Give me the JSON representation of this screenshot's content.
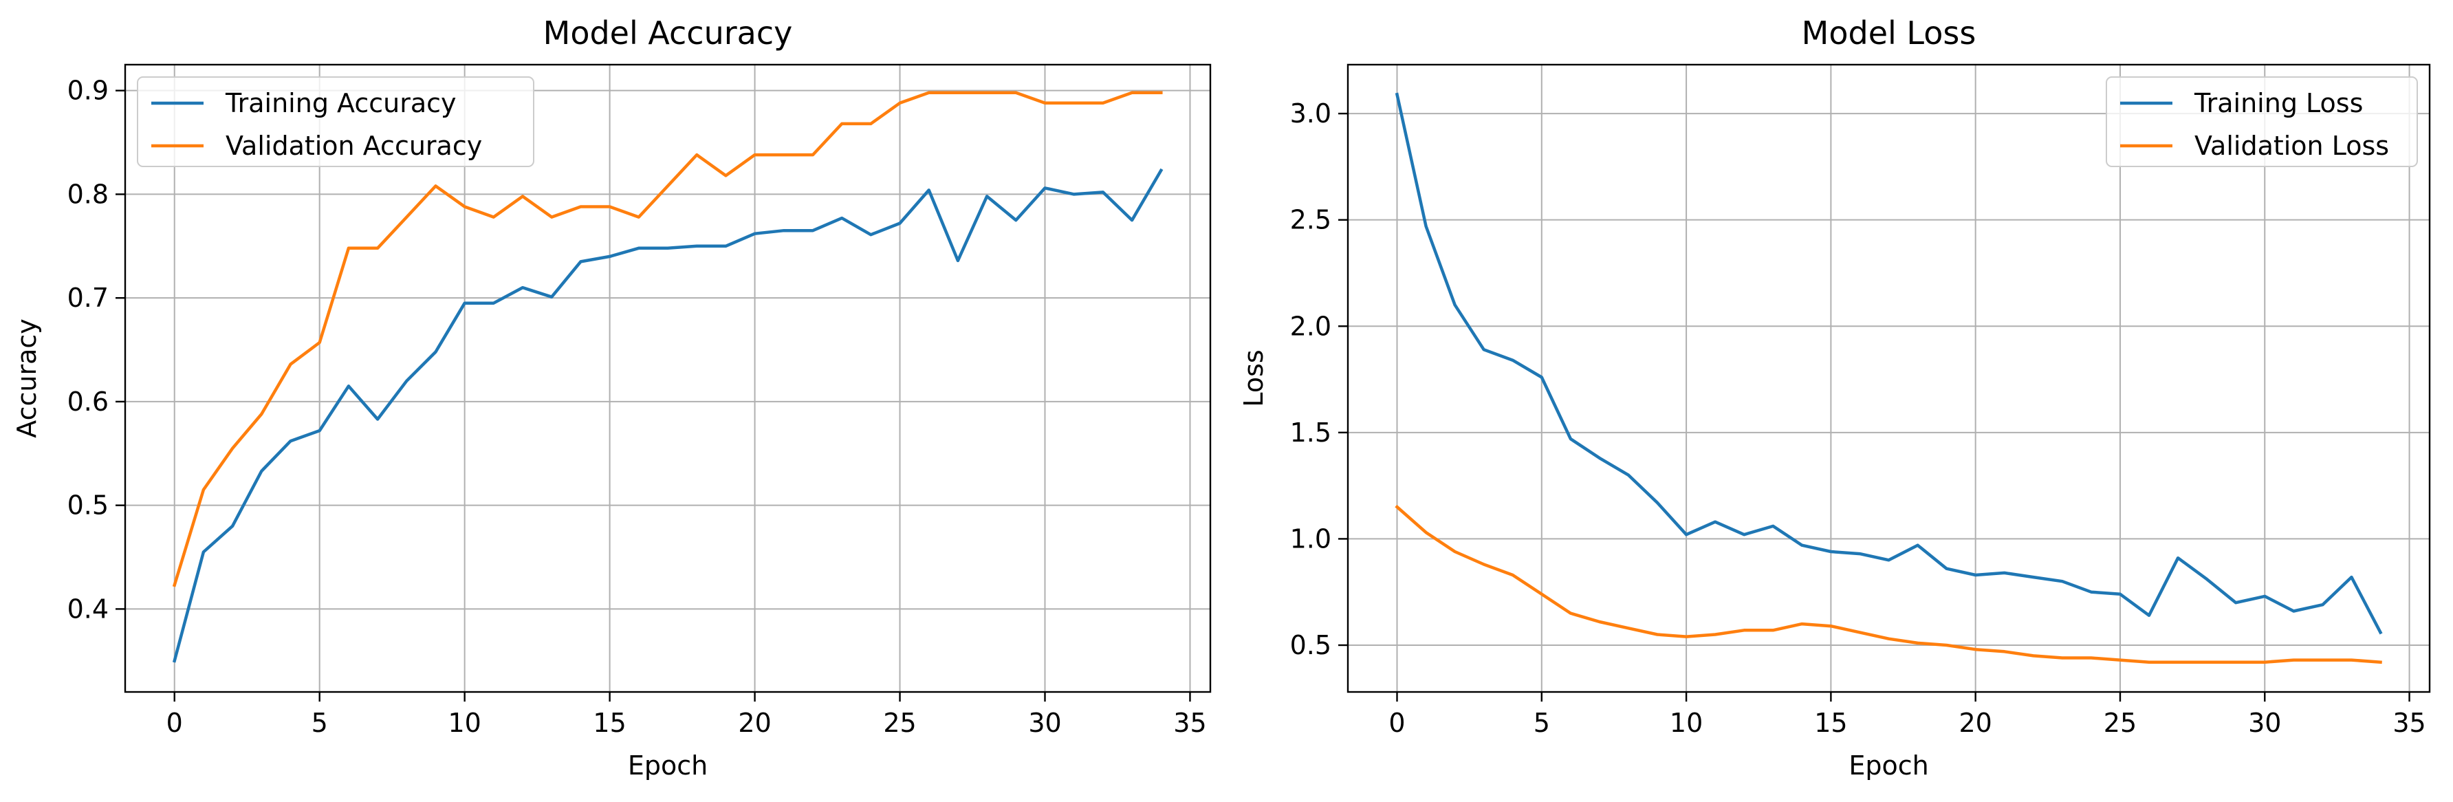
{
  "chart_data": [
    {
      "type": "line",
      "title": "Model Accuracy",
      "xlabel": "Epoch",
      "ylabel": "Accuracy",
      "xlim": [
        -1.7,
        35.7
      ],
      "ylim": [
        0.32,
        0.925
      ],
      "xticks": [
        0,
        5,
        10,
        15,
        20,
        25,
        30,
        35
      ],
      "yticks": [
        0.4,
        0.5,
        0.6,
        0.7,
        0.8,
        0.9
      ],
      "ytick_labels": [
        "0.4",
        "0.5",
        "0.6",
        "0.7",
        "0.8",
        "0.9"
      ],
      "grid": true,
      "legend_position": "top-left",
      "x": [
        0,
        1,
        2,
        3,
        4,
        5,
        6,
        7,
        8,
        9,
        10,
        11,
        12,
        13,
        14,
        15,
        16,
        17,
        18,
        19,
        20,
        21,
        22,
        23,
        24,
        25,
        26,
        27,
        28,
        29,
        30,
        31,
        32,
        33,
        34
      ],
      "series": [
        {
          "name": "Training Accuracy",
          "color": "#1f77b4",
          "values": [
            0.35,
            0.455,
            0.48,
            0.533,
            0.562,
            0.572,
            0.615,
            0.583,
            0.62,
            0.648,
            0.695,
            0.695,
            0.71,
            0.701,
            0.735,
            0.74,
            0.748,
            0.748,
            0.75,
            0.75,
            0.762,
            0.765,
            0.765,
            0.777,
            0.761,
            0.772,
            0.804,
            0.736,
            0.798,
            0.775,
            0.806,
            0.8,
            0.802,
            0.775,
            0.823
          ]
        },
        {
          "name": "Validation Accuracy",
          "color": "#ff7f0e",
          "values": [
            0.423,
            0.515,
            0.555,
            0.588,
            0.636,
            0.657,
            0.748,
            0.748,
            0.778,
            0.808,
            0.788,
            0.778,
            0.798,
            0.778,
            0.788,
            0.788,
            0.778,
            0.808,
            0.838,
            0.818,
            0.838,
            0.838,
            0.838,
            0.868,
            0.868,
            0.888,
            0.898,
            0.898,
            0.898,
            0.898,
            0.888,
            0.888,
            0.888,
            0.898,
            0.898
          ]
        }
      ]
    },
    {
      "type": "line",
      "title": "Model Loss",
      "xlabel": "Epoch",
      "ylabel": "Loss",
      "xlim": [
        -1.7,
        35.7
      ],
      "ylim": [
        0.28,
        3.23
      ],
      "xticks": [
        0,
        5,
        10,
        15,
        20,
        25,
        30,
        35
      ],
      "yticks": [
        0.5,
        1.0,
        1.5,
        2.0,
        2.5,
        3.0
      ],
      "ytick_labels": [
        "0.5",
        "1.0",
        "1.5",
        "2.0",
        "2.5",
        "3.0"
      ],
      "grid": true,
      "legend_position": "top-right",
      "x": [
        0,
        1,
        2,
        3,
        4,
        5,
        6,
        7,
        8,
        9,
        10,
        11,
        12,
        13,
        14,
        15,
        16,
        17,
        18,
        19,
        20,
        21,
        22,
        23,
        24,
        25,
        26,
        27,
        28,
        29,
        30,
        31,
        32,
        33,
        34
      ],
      "series": [
        {
          "name": "Training Loss",
          "color": "#1f77b4",
          "values": [
            3.09,
            2.47,
            2.1,
            1.89,
            1.84,
            1.76,
            1.47,
            1.38,
            1.3,
            1.17,
            1.02,
            1.08,
            1.02,
            1.06,
            0.97,
            0.94,
            0.93,
            0.9,
            0.97,
            0.86,
            0.83,
            0.84,
            0.82,
            0.8,
            0.75,
            0.74,
            0.64,
            0.91,
            0.81,
            0.7,
            0.73,
            0.66,
            0.69,
            0.82,
            0.56
          ]
        },
        {
          "name": "Validation Loss",
          "color": "#ff7f0e",
          "values": [
            1.15,
            1.03,
            0.94,
            0.88,
            0.83,
            0.74,
            0.65,
            0.61,
            0.58,
            0.55,
            0.54,
            0.55,
            0.57,
            0.57,
            0.6,
            0.59,
            0.56,
            0.53,
            0.51,
            0.5,
            0.48,
            0.47,
            0.45,
            0.44,
            0.44,
            0.43,
            0.42,
            0.42,
            0.42,
            0.42,
            0.42,
            0.43,
            0.43,
            0.43,
            0.42
          ]
        }
      ]
    }
  ]
}
